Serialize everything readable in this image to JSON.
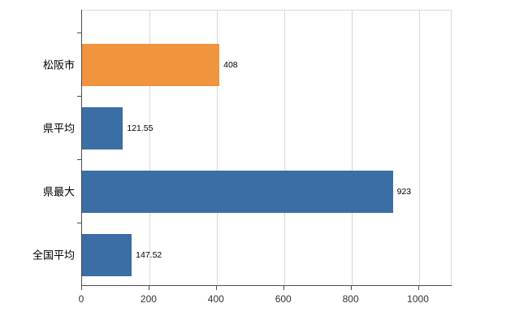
{
  "chart_data": {
    "type": "bar",
    "orientation": "horizontal",
    "title": "",
    "xlabel": "",
    "ylabel": "",
    "categories": [
      "松阪市",
      "県平均",
      "県最大",
      "全国平均"
    ],
    "values": [
      408,
      121.55,
      923,
      147.52
    ],
    "value_labels": [
      "408",
      "121.55",
      "923",
      "147.52"
    ],
    "bar_colors": [
      "#f0943d",
      "#3a6ea5",
      "#3a6ea5",
      "#3a6ea5"
    ],
    "xlim": [
      0,
      1100
    ],
    "x_ticks": [
      0,
      200,
      400,
      600,
      800,
      1000
    ],
    "x_tick_labels": [
      "0",
      "200",
      "400",
      "600",
      "800",
      "1000"
    ],
    "grid": true,
    "legend": "none"
  },
  "colors": {
    "axis": "#4d4d4d",
    "gridline": "#d9d9d9",
    "plot_border": "#d9d9d9",
    "background": "#ffffff",
    "text": "#000000"
  }
}
